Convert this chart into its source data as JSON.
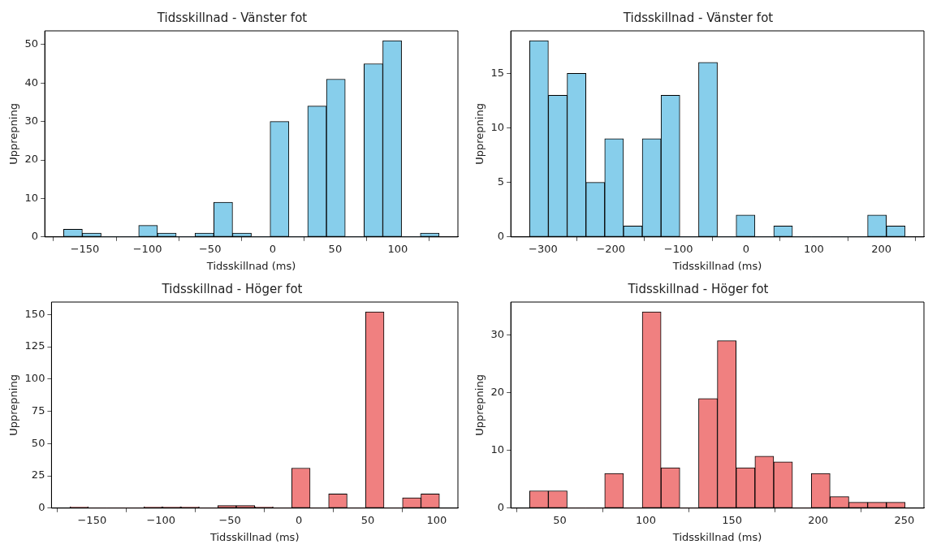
{
  "chart_data": [
    {
      "type": "histogram",
      "title": "Tidsskillnad - Vänster fot",
      "xlabel": "Tidsskillnad (ms)",
      "ylabel": "Upprepning",
      "color": "#87ceeb",
      "bins": [
        -167,
        -152,
        -137,
        -122,
        -107,
        -92,
        -77,
        -62,
        -47,
        -32,
        -17,
        -2,
        13,
        28,
        43,
        58,
        73,
        88,
        103,
        118,
        133
      ],
      "values": [
        2,
        1,
        0,
        0,
        3,
        1,
        0,
        1,
        9,
        1,
        0,
        30,
        0,
        34,
        41,
        0,
        45,
        51,
        0,
        1
      ],
      "xlim": [
        -182,
        148
      ],
      "xticks": [
        -150,
        -100,
        -50,
        0,
        50,
        100
      ],
      "ylim": [
        0,
        53.55
      ],
      "yticks": [
        0,
        10,
        20,
        30,
        40,
        50
      ]
    },
    {
      "type": "histogram",
      "title": "Tidsskillnad - Vänster fot",
      "xlabel": "Tidsskillnad (ms)",
      "ylabel": "Upprepning",
      "color": "#87ceeb",
      "bins": [
        -320,
        -292.25,
        -264.5,
        -236.75,
        -209,
        -181.25,
        -153.5,
        -125.75,
        -98,
        -70.25,
        -42.5,
        -14.75,
        13,
        40.75,
        68.5,
        96.25,
        124,
        151.75,
        179.5,
        207.25,
        235
      ],
      "values": [
        18,
        13,
        15,
        5,
        9,
        1,
        9,
        13,
        0,
        16,
        0,
        2,
        0,
        1,
        0,
        0,
        0,
        0,
        2,
        1
      ],
      "xlim": [
        -347.75,
        262.75
      ],
      "xticks": [
        -300,
        -200,
        -100,
        0,
        100,
        200
      ],
      "ylim": [
        0,
        18.9
      ],
      "yticks": [
        0,
        5,
        10,
        15
      ]
    },
    {
      "type": "histogram",
      "title": "Tidsskillnad - Höger fot",
      "xlabel": "Tidsskillnad (ms)",
      "ylabel": "Upprepning",
      "color": "#f08080",
      "bins": [
        -166,
        -152.6,
        -139.2,
        -125.8,
        -112.4,
        -99,
        -85.6,
        -72.2,
        -58.8,
        -45.4,
        -32,
        -18.6,
        -5.2,
        8.2,
        21.6,
        35,
        48.4,
        61.8,
        75.2,
        88.6,
        102
      ],
      "values": [
        1,
        0,
        0,
        0,
        1,
        1,
        1,
        0,
        2,
        2,
        1,
        0,
        31,
        0,
        11,
        0,
        152,
        0,
        8,
        11
      ],
      "xlim": [
        -179.4,
        115.4
      ],
      "xticks": [
        -150,
        -100,
        -50,
        0,
        50,
        100
      ],
      "ylim": [
        0,
        159.6
      ],
      "yticks": [
        0,
        25,
        50,
        75,
        100,
        125,
        150
      ]
    },
    {
      "type": "histogram",
      "title": "Tidsskillnad - Höger fot",
      "xlabel": "Tidsskillnad (ms)",
      "ylabel": "Upprepning",
      "color": "#f08080",
      "bins": [
        32.5,
        43.4,
        54.3,
        65.2,
        76.1,
        87,
        97.9,
        108.8,
        119.7,
        130.6,
        141.5,
        152.4,
        163.3,
        174.2,
        185.1,
        196,
        206.9,
        217.8,
        228.7,
        239.6,
        250.5
      ],
      "values": [
        3,
        3,
        0,
        0,
        6,
        0,
        34,
        7,
        0,
        19,
        29,
        7,
        9,
        8,
        0,
        6,
        2,
        1,
        1,
        1
      ],
      "xlim": [
        21.6,
        261.4
      ],
      "xticks": [
        50,
        100,
        150,
        200,
        250
      ],
      "ylim": [
        0,
        35.7
      ],
      "yticks": [
        0,
        10,
        20,
        30
      ]
    }
  ]
}
